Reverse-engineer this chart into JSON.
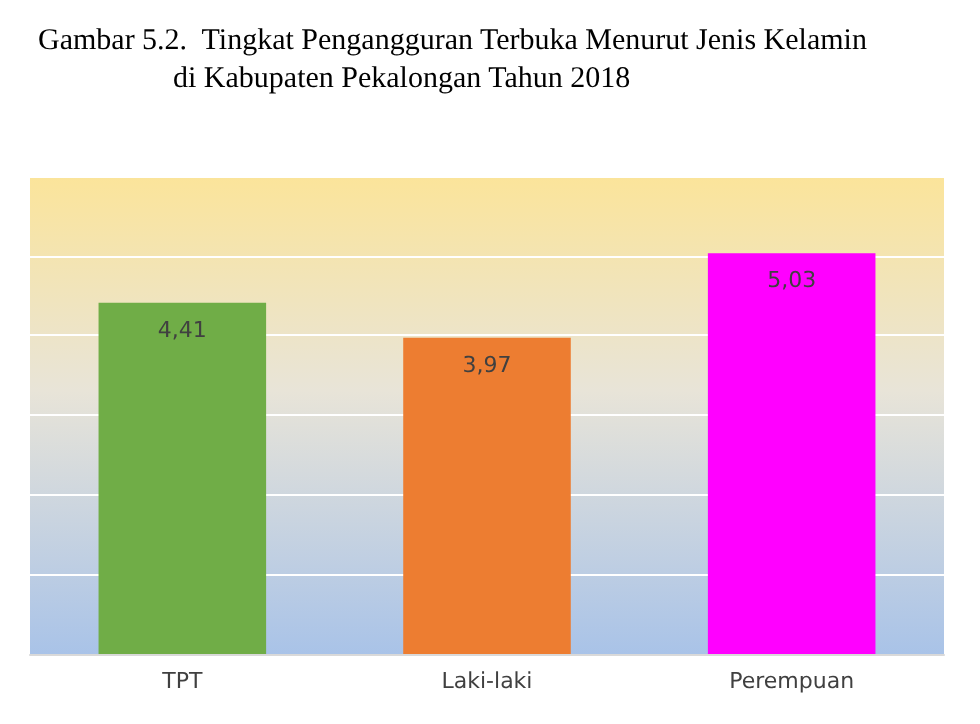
{
  "chart_data": {
    "type": "bar",
    "title": "Gambar 5.2.  Tingkat Pengangguran Terbuka Menurut Jenis Kelamin\n                  di Kabupaten Pekalongan Tahun 2018",
    "categories": [
      "TPT",
      "Laki-laki",
      "Perempuan"
    ],
    "values": [
      4.41,
      3.97,
      5.03
    ],
    "colors": [
      "#70ad47",
      "#ed7d31",
      "#ff00ff"
    ],
    "value_labels": [
      "4,41",
      "3,97",
      "5,03"
    ],
    "ylim": [
      0,
      6
    ],
    "yticks": [
      {
        "value": 0,
        "label": null
      },
      {
        "value": 1,
        "label": null
      },
      {
        "value": 2,
        "label": null
      },
      {
        "value": 3,
        "label": null
      },
      {
        "value": 4,
        "label": null
      },
      {
        "value": 5,
        "label": null
      },
      {
        "value": 6,
        "label": null
      }
    ],
    "grid": "y",
    "tick_labels": "x"
  }
}
